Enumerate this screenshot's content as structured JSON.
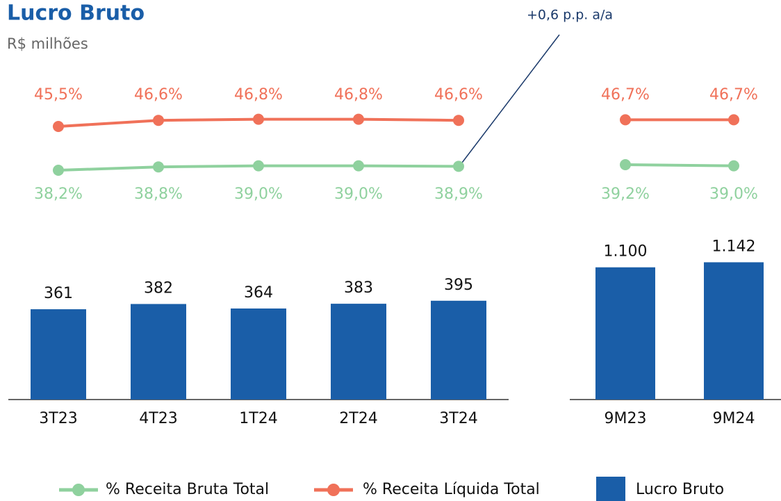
{
  "title": "Lucro Bruto",
  "subtitle": "R$ milhões",
  "annotation": "+0,6 p.p. a/a",
  "chart_data": [
    {
      "type": "bar",
      "categories": [
        "3T23",
        "4T23",
        "1T24",
        "2T24",
        "3T24"
      ],
      "series": [
        {
          "name": "% Receita Bruta Total",
          "type": "line",
          "color": "#8fd19e",
          "values": [
            38.2,
            38.8,
            39.0,
            39.0,
            38.9
          ],
          "value_labels": [
            "38,2%",
            "38,8%",
            "39,0%",
            "39,0%",
            "38,9%"
          ]
        },
        {
          "name": "% Receita Líquida Total",
          "type": "line",
          "color": "#f07159",
          "values": [
            45.5,
            46.6,
            46.8,
            46.8,
            46.6
          ],
          "value_labels": [
            "45,5%",
            "46,6%",
            "46,8%",
            "46,8%",
            "46,6%"
          ]
        },
        {
          "name": "Lucro Bruto",
          "type": "bar",
          "color": "#1a5ea8",
          "values": [
            361,
            382,
            364,
            383,
            395
          ]
        }
      ]
    },
    {
      "type": "bar",
      "categories": [
        "9M23",
        "9M24"
      ],
      "series": [
        {
          "type": "line",
          "color": "#8fd19e",
          "values": [
            39.2,
            39.0
          ],
          "value_labels": [
            "39,2%",
            "39,0%"
          ]
        },
        {
          "type": "line",
          "color": "#f07159",
          "values": [
            46.7,
            46.7
          ],
          "value_labels": [
            "46,7%",
            "46,7%"
          ]
        },
        {
          "type": "bar",
          "color": "#1a5ea8",
          "values": [
            1100,
            1142
          ],
          "value_labels": [
            "1.100",
            "1.142"
          ]
        }
      ]
    }
  ]
}
